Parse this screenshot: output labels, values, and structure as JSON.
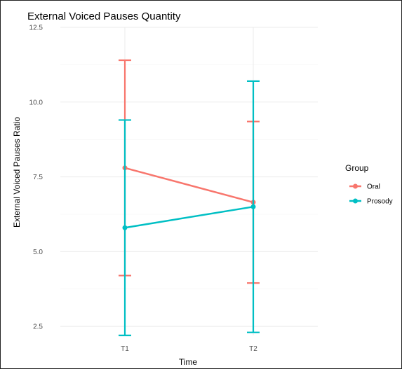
{
  "chart_data": {
    "type": "line",
    "title": "External Voiced Pauses Quantity",
    "xlabel": "Time",
    "ylabel": "External Voiced Pauses Ratio",
    "categories": [
      "T1",
      "T2"
    ],
    "yticks": [
      "2.5",
      "5.0",
      "7.5",
      "10.0",
      "12.5"
    ],
    "ylim": [
      2.2,
      12.5
    ],
    "grid": true,
    "legend": {
      "title": "Group",
      "position": "right"
    },
    "series": [
      {
        "name": "Oral",
        "color": "#F8766D",
        "values": [
          7.8,
          6.65
        ],
        "error_low": [
          4.2,
          3.95
        ],
        "error_high": [
          11.4,
          9.35
        ]
      },
      {
        "name": "Prosody",
        "color": "#00BFC4",
        "values": [
          5.8,
          6.5
        ],
        "error_low": [
          2.2,
          2.3
        ],
        "error_high": [
          9.4,
          10.7
        ]
      }
    ]
  }
}
